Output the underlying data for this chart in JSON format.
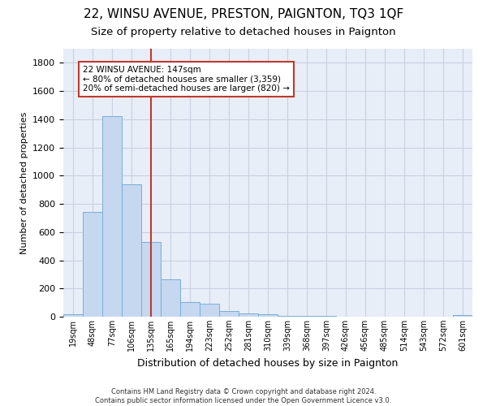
{
  "title": "22, WINSU AVENUE, PRESTON, PAIGNTON, TQ3 1QF",
  "subtitle": "Size of property relative to detached houses in Paignton",
  "xlabel": "Distribution of detached houses by size in Paignton",
  "ylabel": "Number of detached properties",
  "categories": [
    "19sqm",
    "48sqm",
    "77sqm",
    "106sqm",
    "135sqm",
    "165sqm",
    "194sqm",
    "223sqm",
    "252sqm",
    "281sqm",
    "310sqm",
    "339sqm",
    "368sqm",
    "397sqm",
    "426sqm",
    "456sqm",
    "485sqm",
    "514sqm",
    "543sqm",
    "572sqm",
    "601sqm"
  ],
  "values": [
    20,
    740,
    1420,
    940,
    530,
    265,
    105,
    90,
    38,
    25,
    15,
    8,
    5,
    3,
    2,
    1,
    1,
    1,
    0,
    0,
    13
  ],
  "bar_color": "#c5d8f0",
  "bar_edge_color": "#7aadd4",
  "vline_x_index": 4.5,
  "vline_color": "#c0392b",
  "annotation_text": "22 WINSU AVENUE: 147sqm\n← 80% of detached houses are smaller (3,359)\n20% of semi-detached houses are larger (820) →",
  "annotation_box_color": "#c0392b",
  "background_color": "#ffffff",
  "plot_bg_color": "#e8eef8",
  "grid_color": "#c8d0e0",
  "footer_line1": "Contains HM Land Registry data © Crown copyright and database right 2024.",
  "footer_line2": "Contains public sector information licensed under the Open Government Licence v3.0.",
  "ylim": [
    0,
    1900
  ],
  "yticks": [
    0,
    200,
    400,
    600,
    800,
    1000,
    1200,
    1400,
    1600,
    1800
  ],
  "title_fontsize": 11,
  "subtitle_fontsize": 9.5,
  "ylabel_fontsize": 8,
  "xlabel_fontsize": 9
}
